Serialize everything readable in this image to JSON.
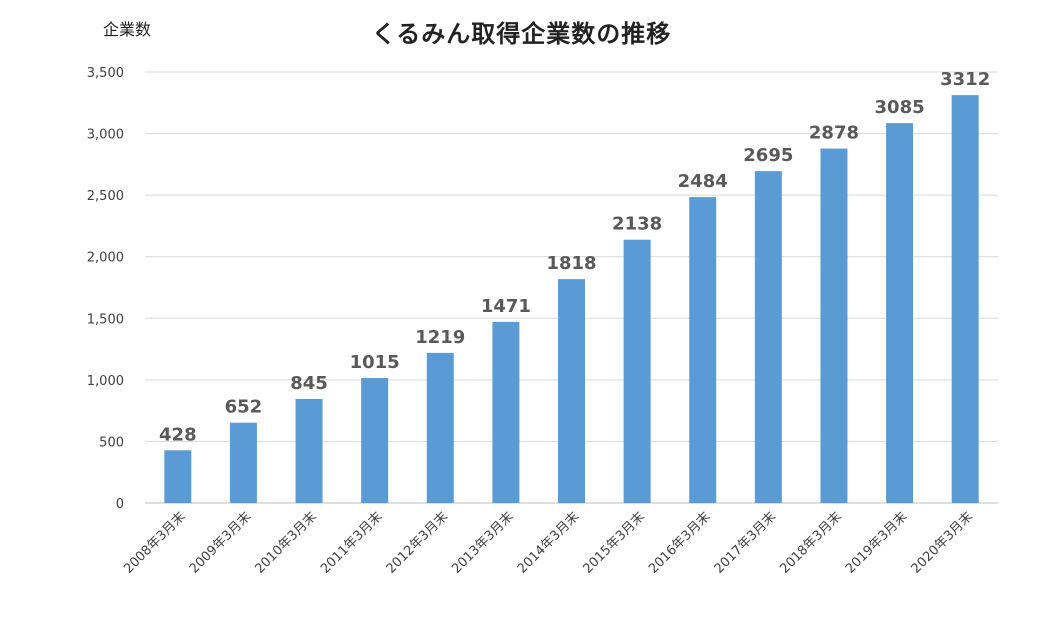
{
  "chart_data": {
    "type": "bar",
    "title": "くるみん取得企業数の推移",
    "ylabel": "企業数",
    "xlabel": "",
    "ylim": [
      0,
      3500
    ],
    "yticks": [
      0,
      500,
      1000,
      1500,
      2000,
      2500,
      3000,
      3500
    ],
    "ytick_labels": [
      "0",
      "500",
      "1,000",
      "1,500",
      "2,000",
      "2,500",
      "3,000",
      "3,500"
    ],
    "grid": true,
    "categories": [
      "2008年3月末",
      "2009年3月末",
      "2010年3月末",
      "2011年3月末",
      "2012年3月末",
      "2013年3月末",
      "2014年3月末",
      "2015年3月末",
      "2016年3月末",
      "2017年3月末",
      "2018年3月末",
      "2019年3月末",
      "2020年3月末"
    ],
    "values": [
      428,
      652,
      845,
      1015,
      1219,
      1471,
      1818,
      2138,
      2484,
      2695,
      2878,
      3085,
      3312
    ],
    "data_labels": [
      "428",
      "652",
      "845",
      "1015",
      "1219",
      "1471",
      "1818",
      "2138",
      "2484",
      "2695",
      "2878",
      "3085",
      "3312"
    ],
    "colors": {
      "bar": "#5b9bd5",
      "data_label": "#595959",
      "gridline": "#d9d9d9",
      "axis_text": "#404040"
    }
  }
}
